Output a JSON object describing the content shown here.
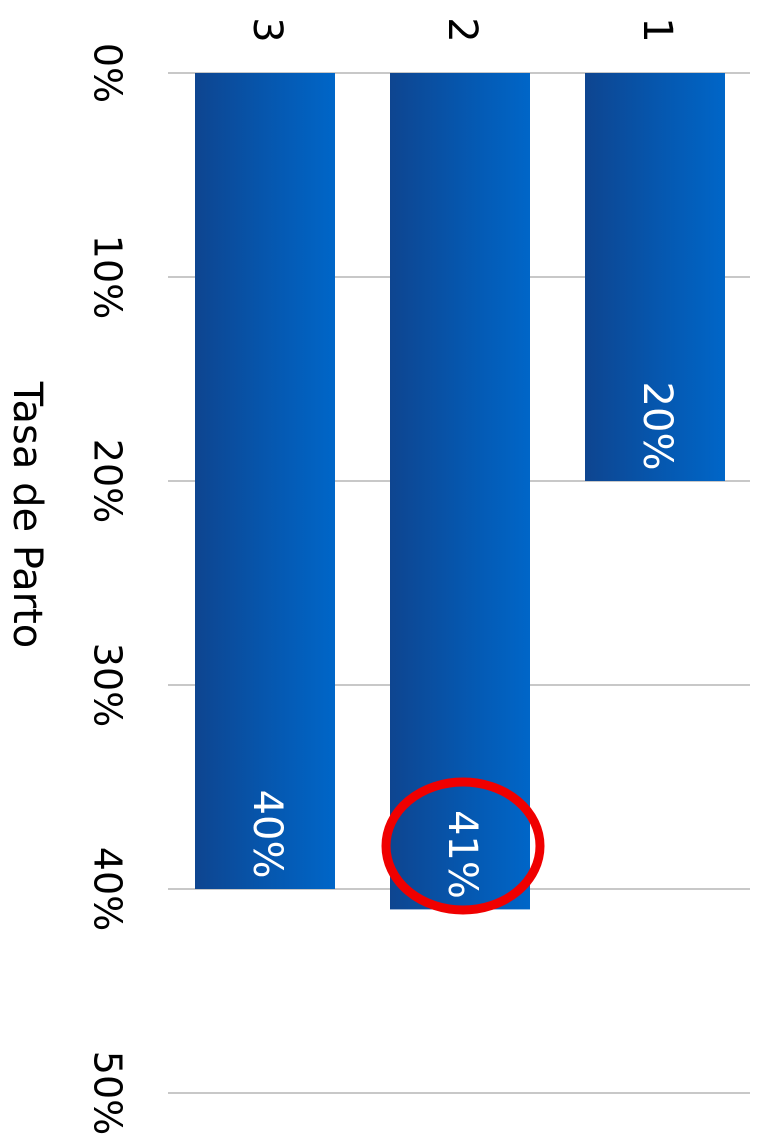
{
  "chart_data": {
    "type": "bar",
    "ylabel": "Tasa de Parto",
    "categories": [
      "1",
      "2",
      "3"
    ],
    "values": [
      20,
      41,
      40
    ],
    "value_labels": [
      "20%",
      "41%",
      "40%"
    ],
    "color": "#0a5cb8",
    "ylim": [
      0,
      50
    ],
    "yticks": [
      {
        "value": 0,
        "label": "0%"
      },
      {
        "value": 10,
        "label": "10%"
      },
      {
        "value": 20,
        "label": "20%"
      },
      {
        "value": 30,
        "label": "30%"
      },
      {
        "value": 40,
        "label": "40%"
      },
      {
        "value": 50,
        "label": "50%"
      }
    ],
    "grid": true
  }
}
